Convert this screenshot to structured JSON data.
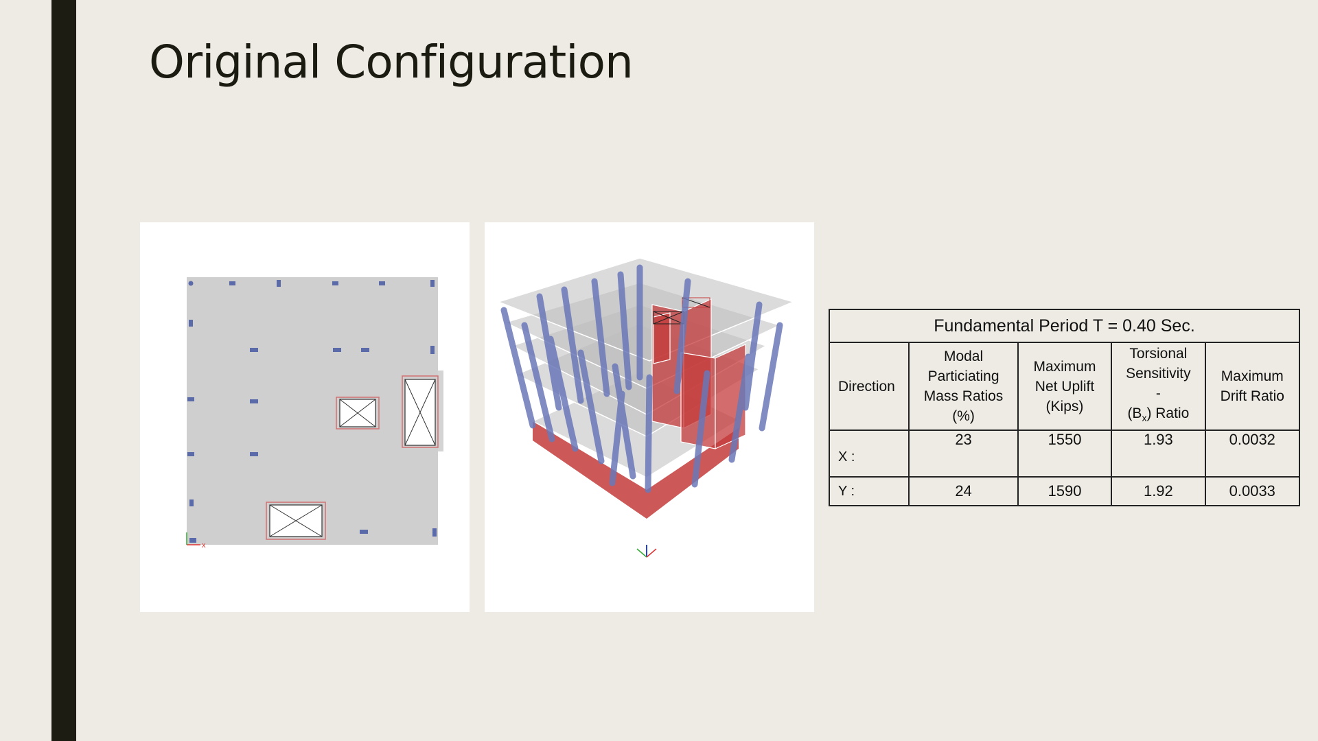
{
  "slide": {
    "title": "Original Configuration"
  },
  "figures": {
    "plan_view": {
      "icon": "floor-plan-drawing",
      "axis_label": "x"
    },
    "model_3d": {
      "icon": "3d-structural-model-drawing"
    }
  },
  "table": {
    "title": "Fundamental Period T = 0.40 Sec.",
    "headers": {
      "direction": "Direction",
      "modal_line1": "Modal",
      "modal_line2": "Particiating",
      "modal_line3": "Mass Ratios",
      "modal_line4": "(%)",
      "uplift_line1": "Maximum",
      "uplift_line2": "Net Uplift",
      "uplift_line3": "(Kips)",
      "torsion_line1": "Torsional",
      "torsion_line2": "Sensitivity",
      "torsion_line3": "-",
      "torsion_line4_pre": "(B",
      "torsion_line4_sub": "x",
      "torsion_line4_post": ") Ratio",
      "drift_line1": "Maximum",
      "drift_line2": "Drift Ratio"
    },
    "rows": [
      {
        "direction": "X :",
        "mass_ratio": "23",
        "uplift": "1550",
        "torsion": "1.93",
        "drift": "0.0032"
      },
      {
        "direction": "Y :",
        "mass_ratio": "24",
        "uplift": "1590",
        "torsion": "1.92",
        "drift": "0.0033"
      }
    ]
  },
  "colors": {
    "background": "#edebe3",
    "accent_bar": "#1c1c12",
    "column_blue": "#5b6aa8",
    "wall_red": "#c43b3b",
    "slab_grey": "#cfcfcf"
  }
}
